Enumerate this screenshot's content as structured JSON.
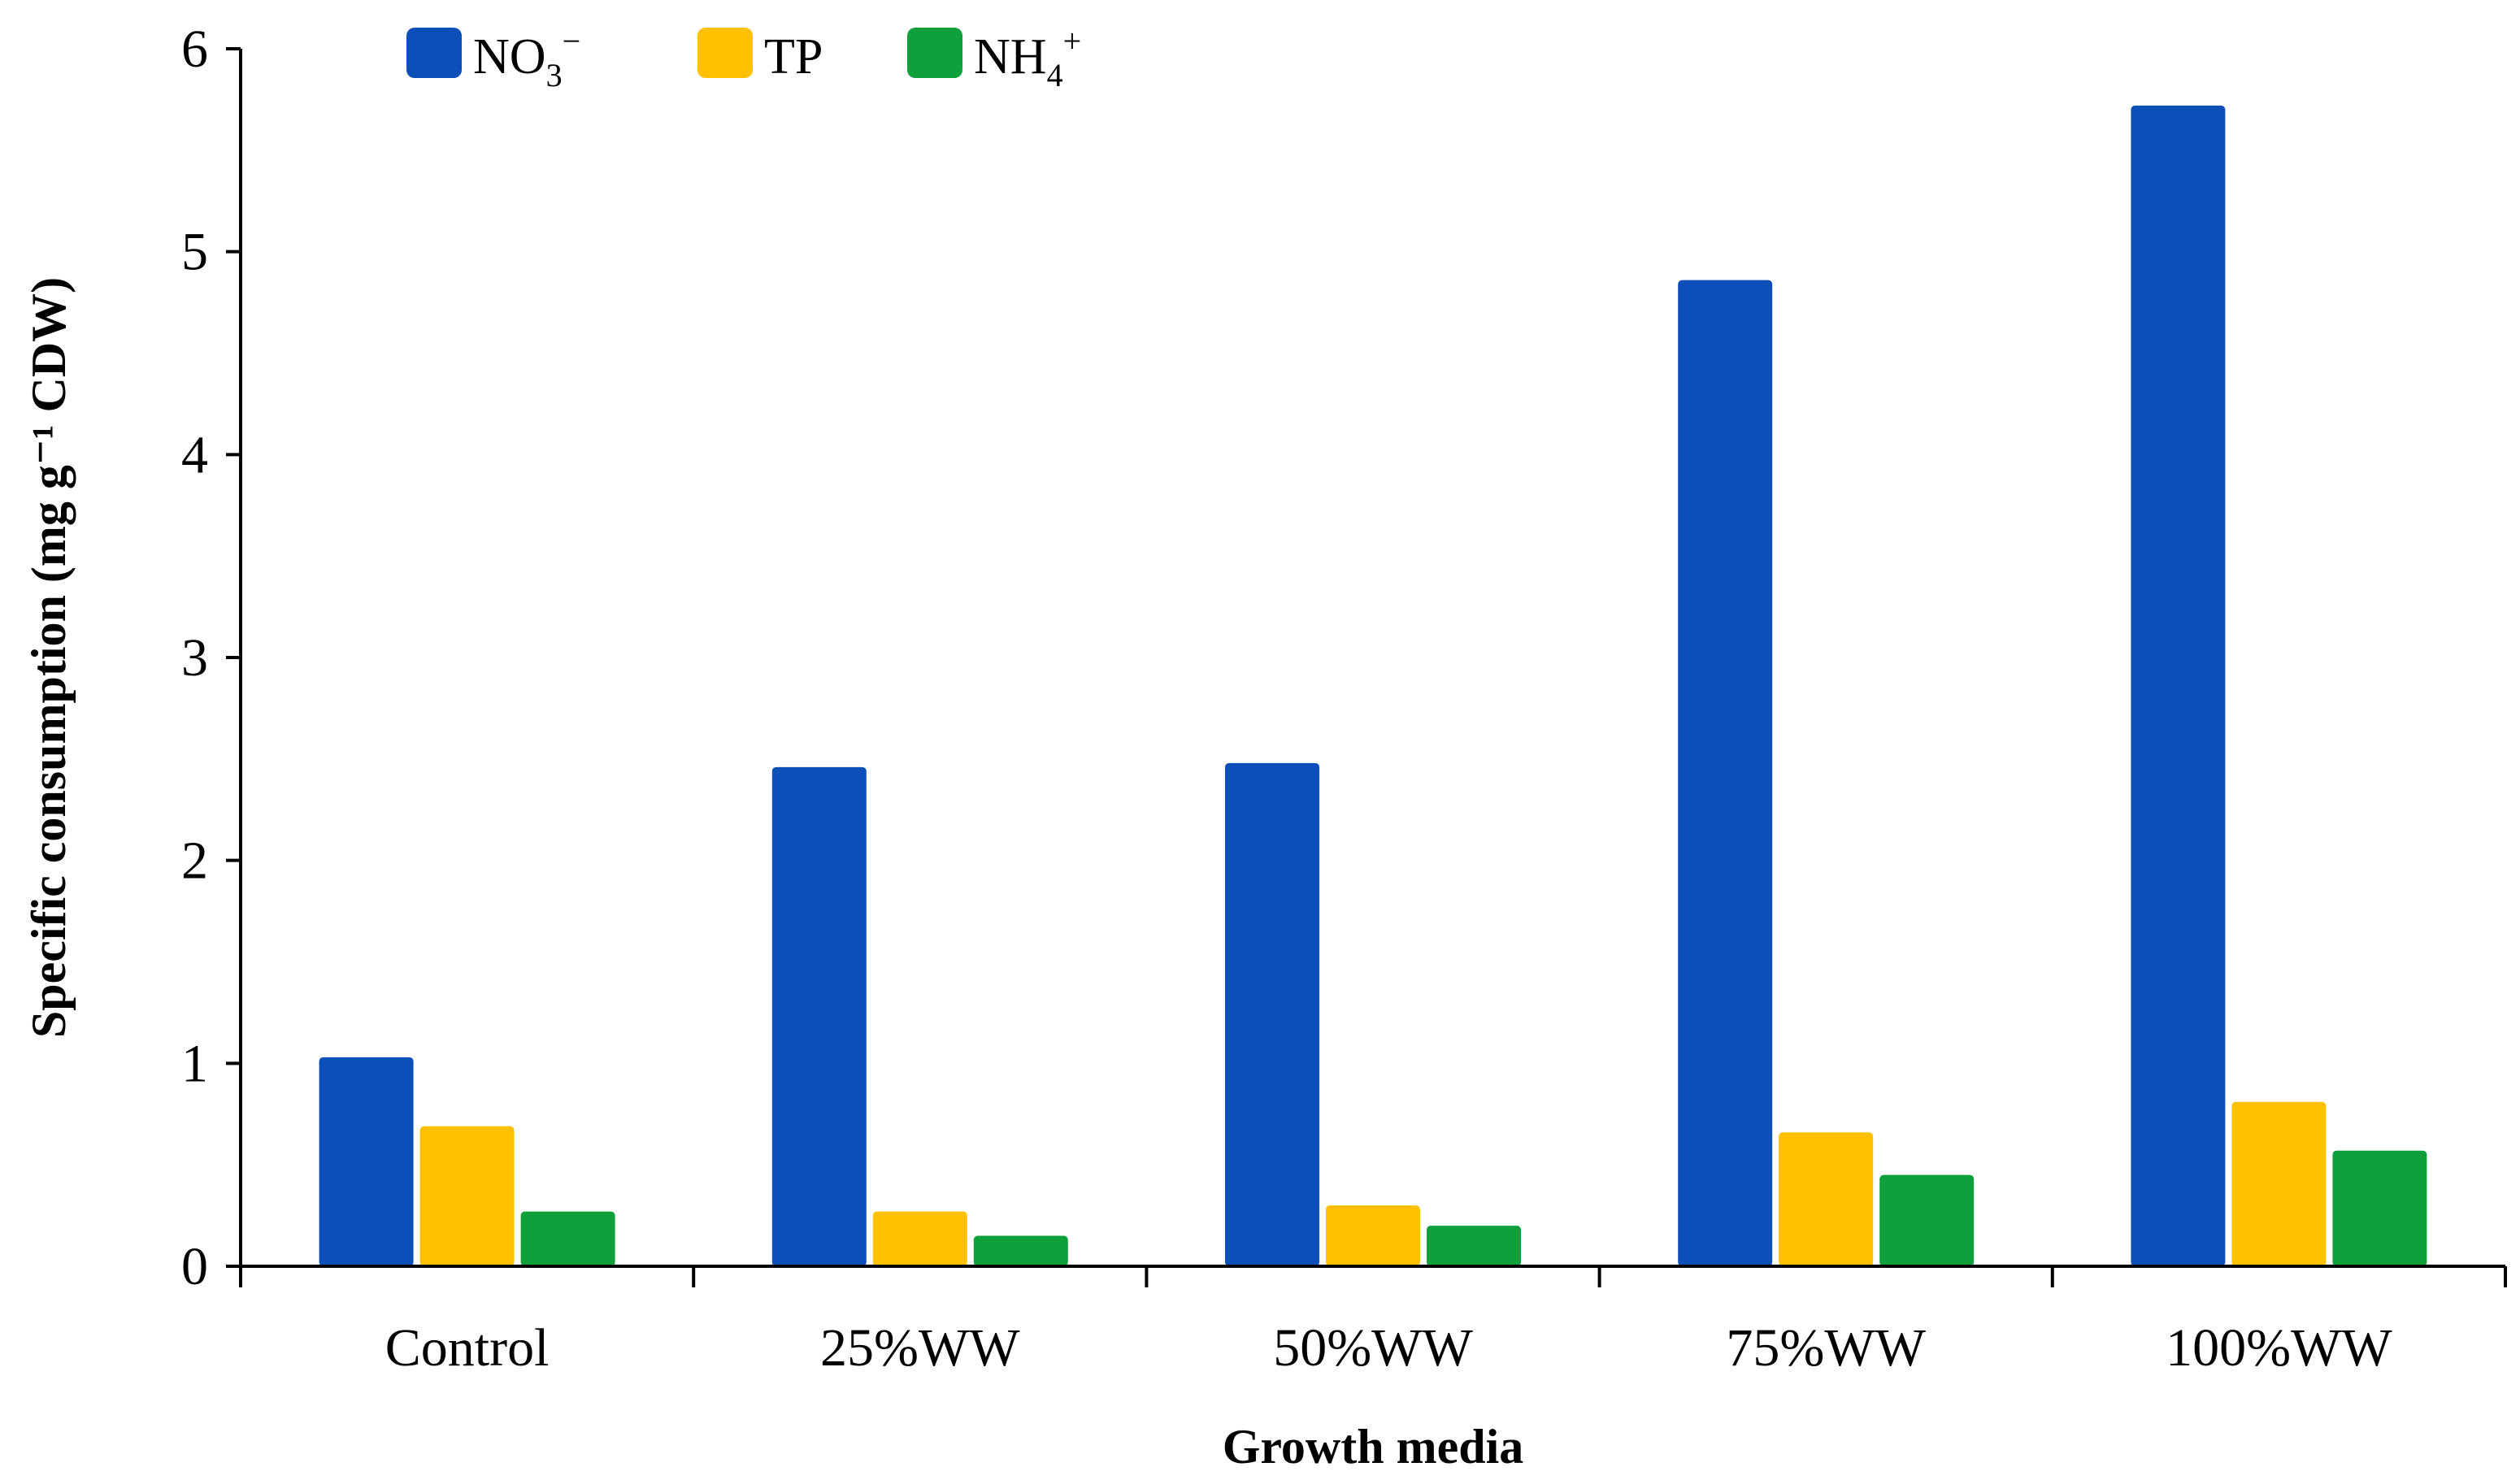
{
  "chart_data": {
    "type": "bar",
    "title": "",
    "xlabel": "Growth media",
    "ylabel": "Specific consumption (mg g⁻¹ CDW)",
    "ylim": [
      0,
      6
    ],
    "yticks": [
      0,
      1,
      2,
      3,
      4,
      5,
      6
    ],
    "grid": false,
    "legend_position": "top-left",
    "categories": [
      "Control",
      "25%WW",
      "50%WW",
      "75%WW",
      "100%WW"
    ],
    "series": [
      {
        "name": "NO3-",
        "label_base": "NO",
        "label_sub": "3",
        "label_sup": "−",
        "color": "#0D4FB8",
        "values": [
          1.03,
          2.46,
          2.48,
          4.86,
          5.72
        ]
      },
      {
        "name": "TP",
        "label_base": "TP",
        "label_sub": "",
        "label_sup": "",
        "color": "#FFC000",
        "values": [
          0.69,
          0.27,
          0.3,
          0.66,
          0.81
        ]
      },
      {
        "name": "NH4+",
        "label_base": "NH",
        "label_sub": "4",
        "label_sup": "+",
        "color": "#0FA03B",
        "values": [
          0.27,
          0.15,
          0.2,
          0.45,
          0.57
        ]
      }
    ]
  }
}
